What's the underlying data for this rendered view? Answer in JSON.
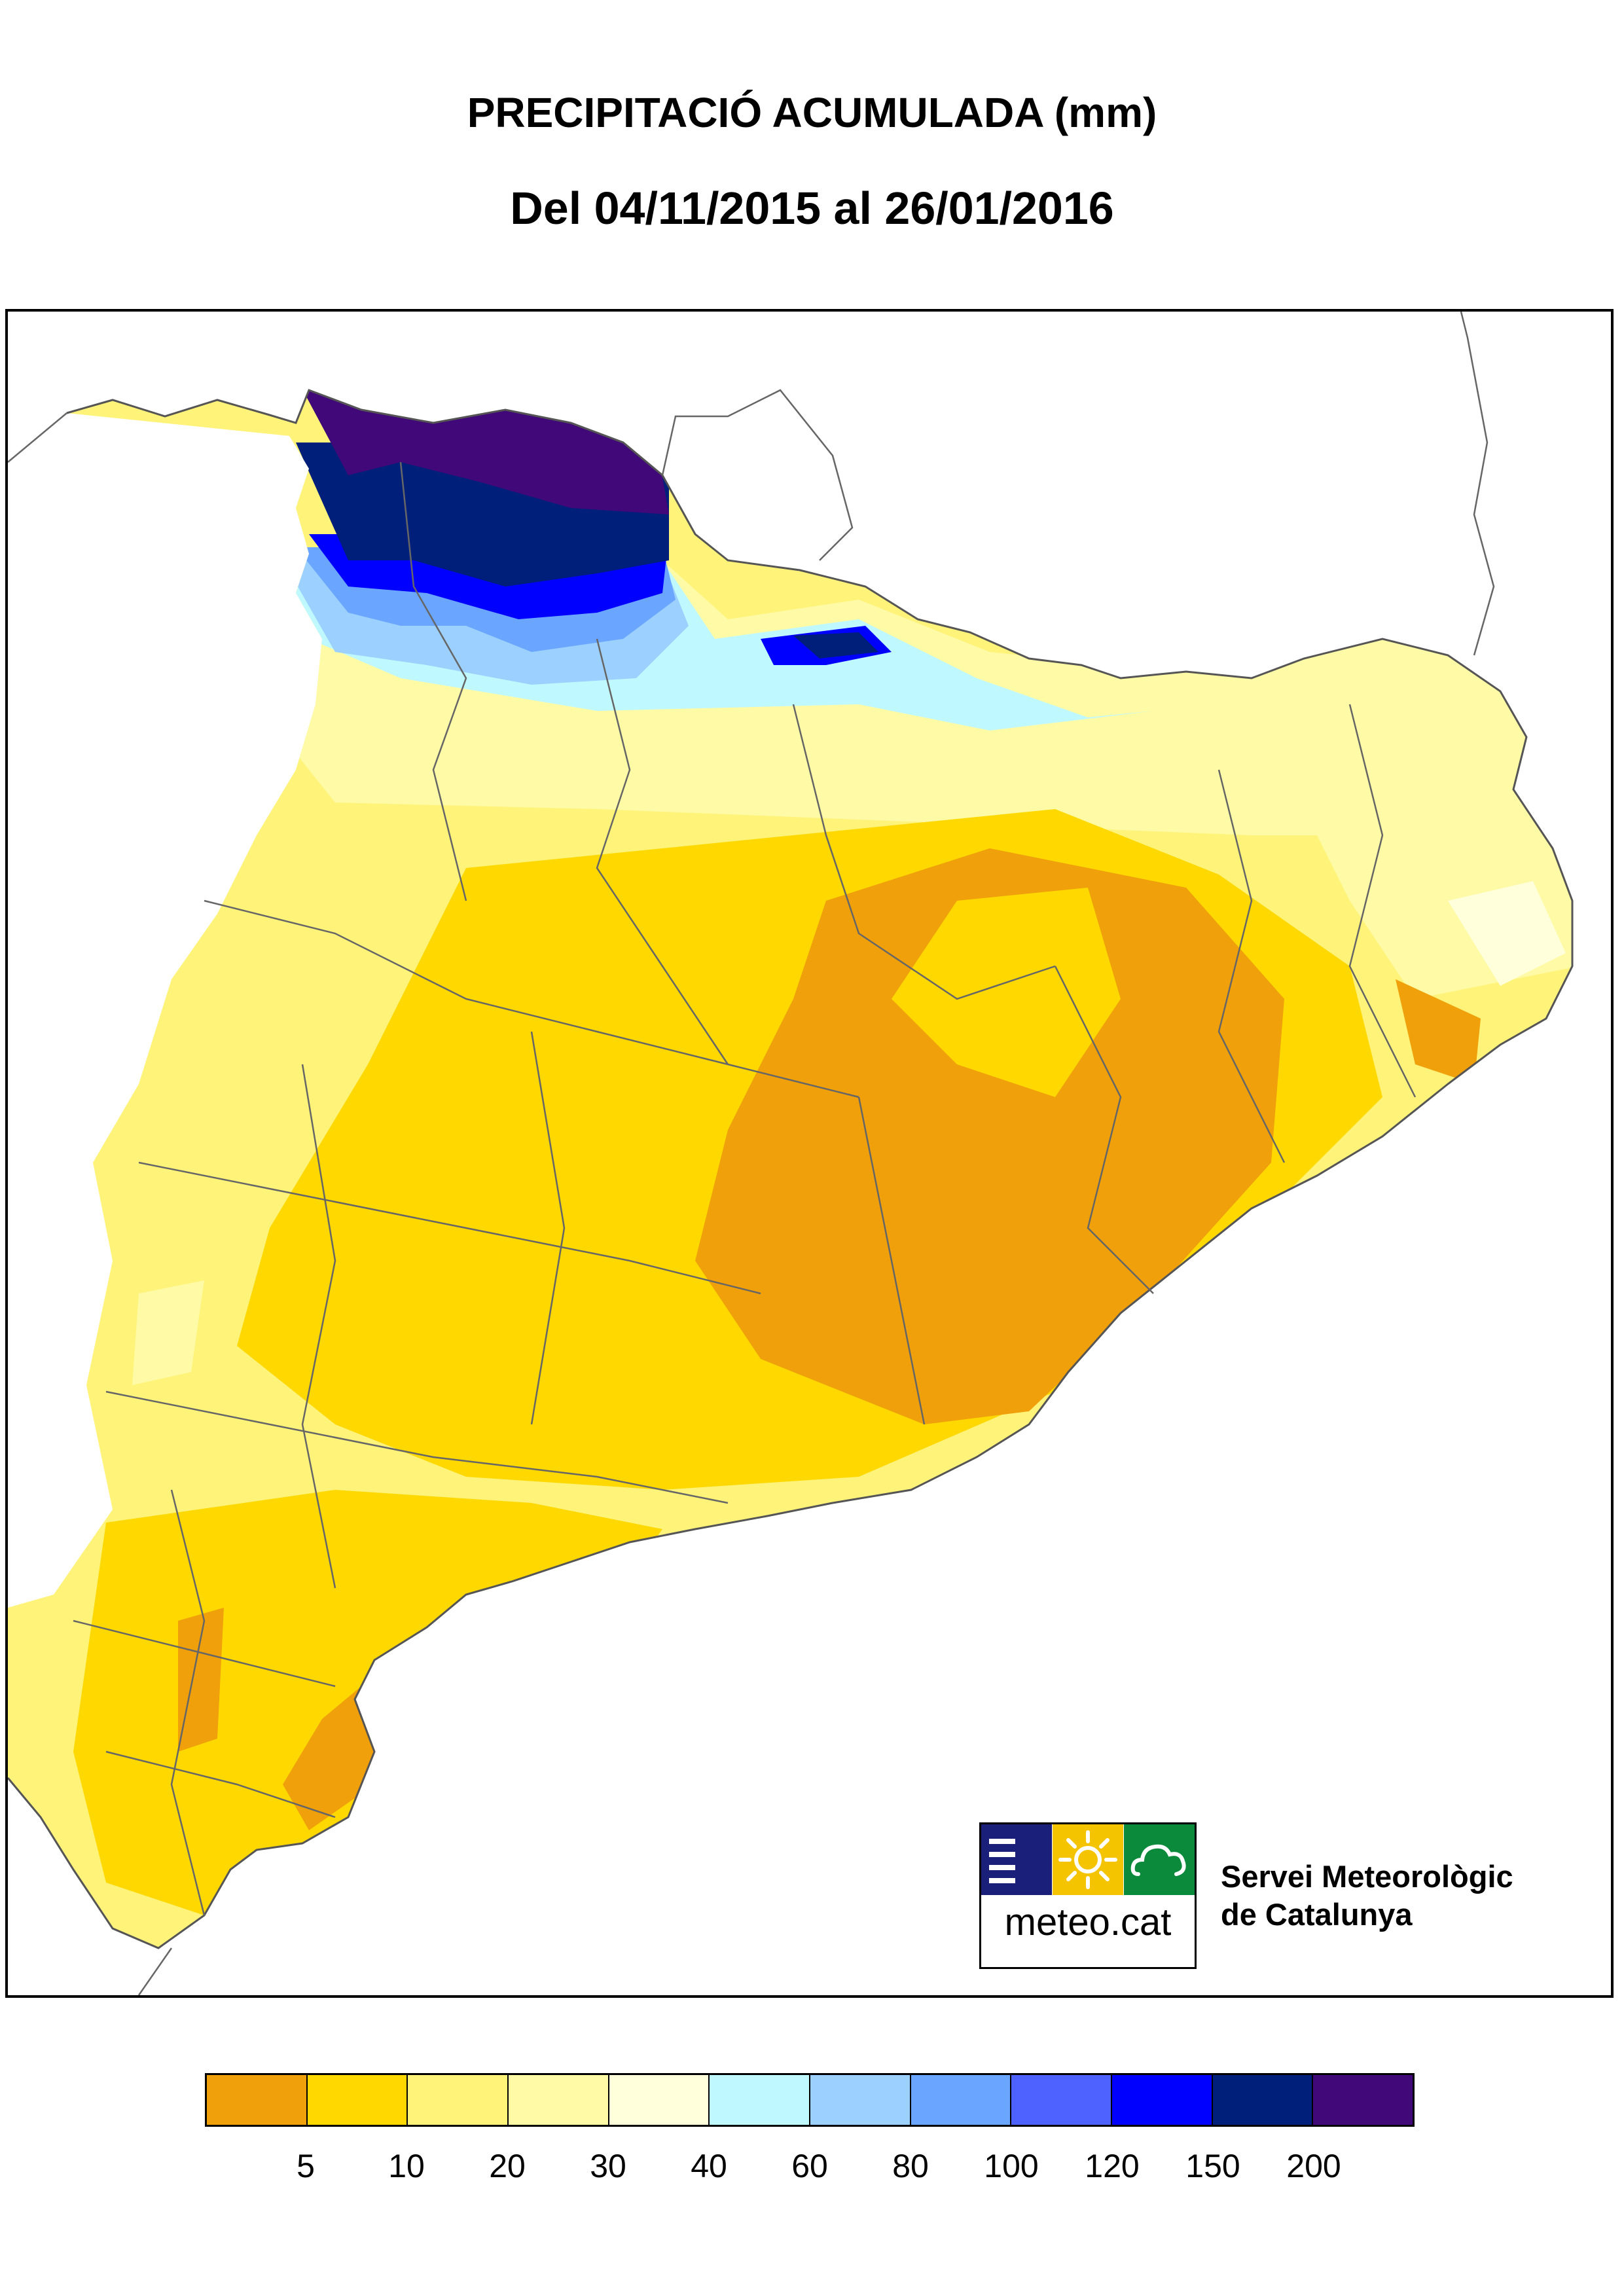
{
  "title": "PRECIPITACIÓ ACUMULADA (mm)",
  "subtitle": "Del 04/11/2015 al 26/01/2016",
  "legend": {
    "colors": [
      "#f0a00a",
      "#ffd800",
      "#fff37a",
      "#fffaa6",
      "#ffffdc",
      "#c0f8ff",
      "#9cd0ff",
      "#6aa6ff",
      "#4e62ff",
      "#0000ff",
      "#001f7a",
      "#400878"
    ],
    "labels": [
      "5",
      "10",
      "20",
      "30",
      "40",
      "60",
      "80",
      "100",
      "120",
      "150",
      "200"
    ]
  },
  "logo": {
    "text": "meteo.cat",
    "icons": [
      "menu-lines-icon",
      "sun-icon",
      "cloud-icon"
    ],
    "colors": [
      "#1a1f7a",
      "#f5c400",
      "#0a8a3a"
    ]
  },
  "organization": {
    "line1": "Servei Meteorològic",
    "line2": "de Catalunya"
  }
}
